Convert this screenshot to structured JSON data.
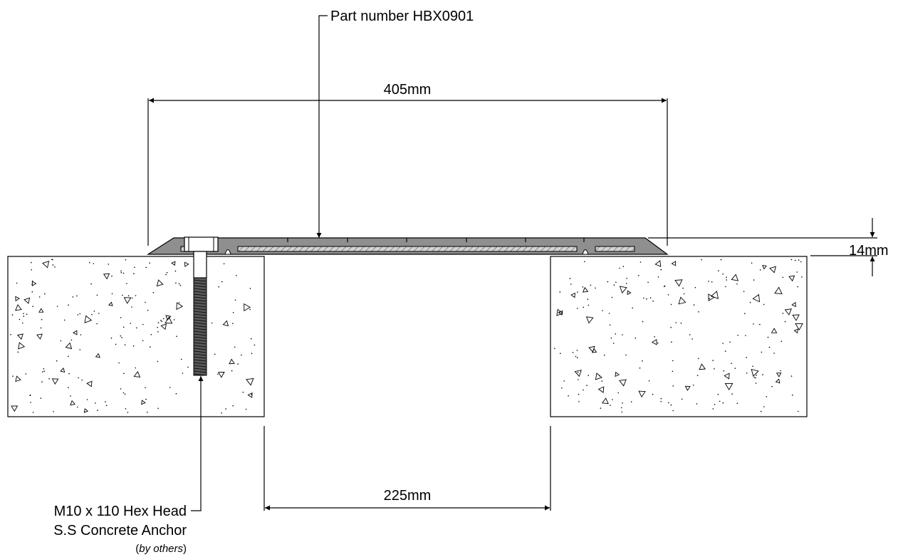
{
  "labels": {
    "part_number": "Part number HBX0901",
    "overall_width": "405mm",
    "height": "14mm",
    "gap_width": "225mm",
    "anchor_line1": "M10 x 110 Hex Head",
    "anchor_line2": "S.S Concrete Anchor",
    "anchor_note_open": "(",
    "anchor_note_italic": "by others",
    "anchor_note_close": ")"
  },
  "colors": {
    "line": "#000000",
    "profile_fill": "#8f8f8f",
    "insert_fill": "#c9c9c9",
    "bolt_fill": "#5a5a5a"
  }
}
